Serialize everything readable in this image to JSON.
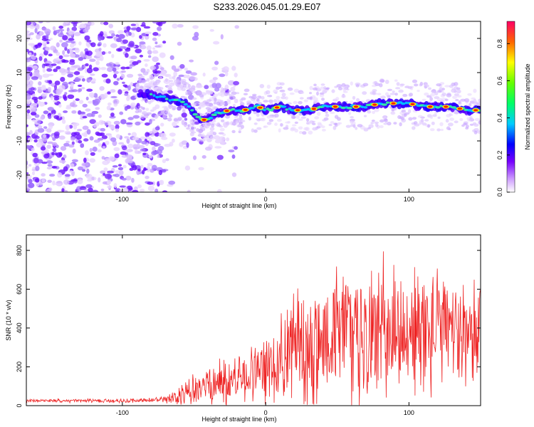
{
  "title": "S233.2026.045.01.29.E07",
  "chart_data": [
    {
      "type": "heatmap",
      "name": "spectrogram",
      "xlabel": "Height of straight line (km)",
      "ylabel": "Frequency (Hz)",
      "xlim": [
        -167,
        150
      ],
      "ylim": [
        -25,
        25
      ],
      "xticks": [
        -100,
        0,
        100
      ],
      "yticks": [
        -20,
        -10,
        0,
        10,
        20
      ],
      "colorbar": {
        "label": "Normalized spectral amplitude",
        "range": [
          0,
          0.92
        ],
        "ticks": [
          0.0,
          0.2,
          0.4,
          0.6,
          0.8
        ]
      },
      "ridge": {
        "x": [
          -85,
          -75,
          -65,
          -55,
          -48,
          -42,
          -35,
          -25,
          -15,
          -5,
          0,
          10,
          20,
          30,
          40,
          50,
          60,
          70,
          80,
          90,
          100,
          110,
          120,
          130,
          140,
          150
        ],
        "freq": [
          4,
          3,
          2,
          1,
          -3,
          -4,
          -2,
          -1,
          -1,
          0,
          -1,
          0,
          -1,
          -1,
          0,
          0,
          0,
          0,
          1,
          1,
          1,
          0,
          0,
          0,
          -1,
          -1
        ]
      },
      "noise_x_range": [
        -167,
        -40
      ],
      "noise_freq_range": [
        -25,
        25
      ]
    },
    {
      "type": "line",
      "name": "snr",
      "xlabel": "Height of straight line (km)",
      "ylabel": "SNR (10 * v/v)",
      "xlim": [
        -167,
        150
      ],
      "ylim": [
        0,
        880
      ],
      "xticks": [
        -100,
        0,
        100
      ],
      "yticks": [
        0,
        200,
        400,
        600,
        800
      ],
      "color": "#ee2222",
      "envelope": {
        "x": [
          -167,
          -100,
          -70,
          -60,
          -50,
          -40,
          -30,
          -20,
          -10,
          0,
          10,
          20,
          30,
          40,
          50,
          60,
          70,
          80,
          90,
          100,
          110,
          120,
          130,
          140,
          150
        ],
        "mean": [
          25,
          25,
          30,
          40,
          80,
          110,
          120,
          140,
          160,
          180,
          260,
          300,
          340,
          360,
          380,
          370,
          360,
          380,
          400,
          360,
          380,
          400,
          390,
          380,
          400
        ],
        "spread": [
          10,
          12,
          20,
          60,
          110,
          130,
          150,
          160,
          180,
          200,
          250,
          380,
          500,
          450,
          420,
          450,
          400,
          430,
          400,
          400,
          420,
          380,
          300,
          320,
          380
        ]
      }
    }
  ]
}
